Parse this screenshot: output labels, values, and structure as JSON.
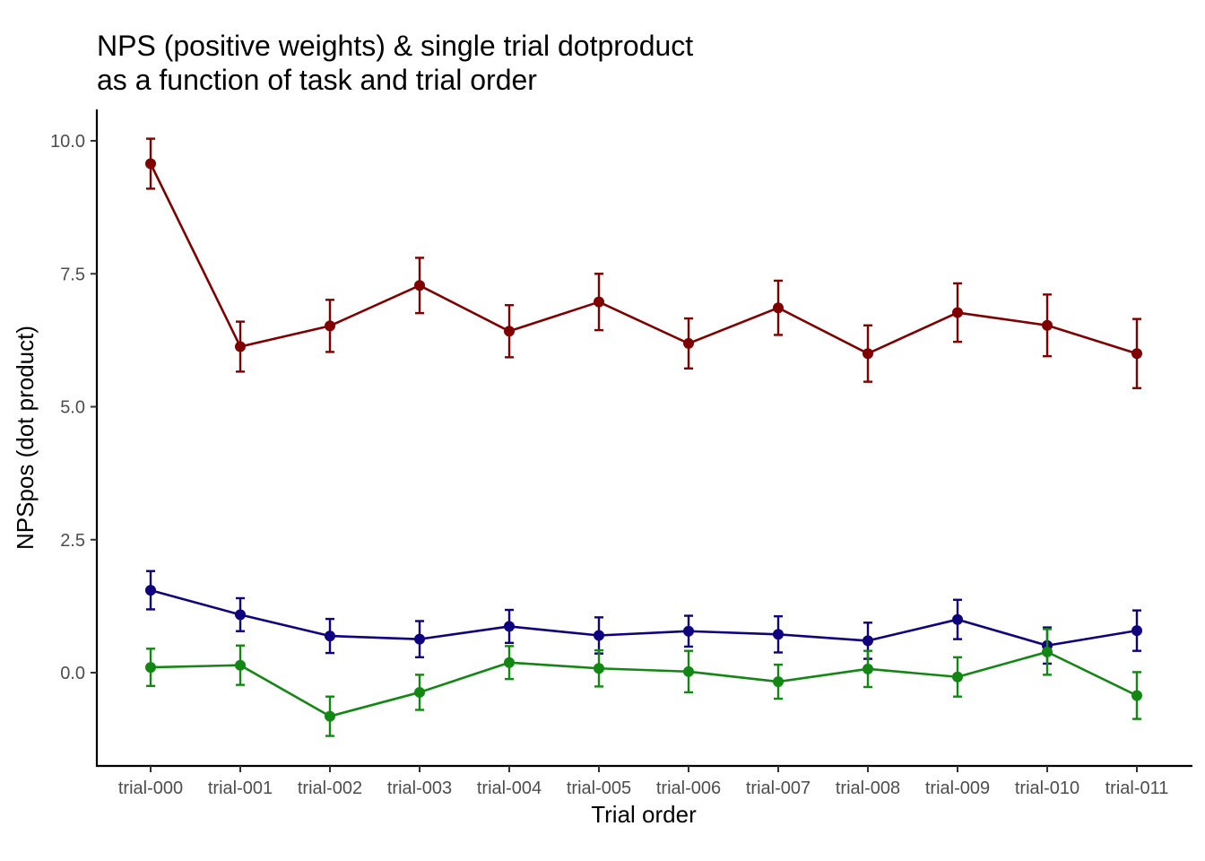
{
  "chart_data": {
    "type": "line",
    "title": "NPS (positive weights) & single trial dotproduct",
    "subtitle": "as a function of task and trial order",
    "xlabel": "Trial order",
    "ylabel": "NPSpos (dot product)",
    "categories": [
      "trial-000",
      "trial-001",
      "trial-002",
      "trial-003",
      "trial-004",
      "trial-005",
      "trial-006",
      "trial-007",
      "trial-008",
      "trial-009",
      "trial-010",
      "trial-011"
    ],
    "ylim": [
      -1.7,
      10.6
    ],
    "yticks": [
      0.0,
      2.5,
      5.0,
      7.5,
      10.0
    ],
    "ytick_labels": [
      "0.0",
      "2.5",
      "5.0",
      "7.5",
      "10.0"
    ],
    "grid": false,
    "legend": "none",
    "series": [
      {
        "color": "#800000",
        "values": [
          9.57,
          6.13,
          6.52,
          7.28,
          6.42,
          6.97,
          6.19,
          6.86,
          6.0,
          6.77,
          6.53,
          6.0
        ],
        "lower": [
          9.1,
          5.66,
          6.03,
          6.76,
          5.93,
          6.44,
          5.72,
          6.35,
          5.47,
          6.22,
          5.95,
          5.35
        ],
        "upper": [
          10.04,
          6.6,
          7.01,
          7.8,
          6.91,
          7.5,
          6.66,
          7.37,
          6.53,
          7.32,
          7.11,
          6.65
        ]
      },
      {
        "color": "#0f0080",
        "values": [
          1.55,
          1.09,
          0.69,
          0.63,
          0.87,
          0.7,
          0.78,
          0.72,
          0.6,
          1.0,
          0.51,
          0.79
        ],
        "lower": [
          1.19,
          0.78,
          0.37,
          0.29,
          0.56,
          0.36,
          0.49,
          0.38,
          0.26,
          0.63,
          0.17,
          0.41
        ],
        "upper": [
          1.91,
          1.4,
          1.01,
          0.97,
          1.18,
          1.04,
          1.07,
          1.06,
          0.94,
          1.37,
          0.85,
          1.17
        ]
      },
      {
        "color": "#138713",
        "values": [
          0.1,
          0.14,
          -0.82,
          -0.37,
          0.19,
          0.08,
          0.02,
          -0.17,
          0.07,
          -0.08,
          0.39,
          -0.43
        ],
        "lower": [
          -0.25,
          -0.23,
          -1.19,
          -0.7,
          -0.12,
          -0.26,
          -0.37,
          -0.49,
          -0.27,
          -0.45,
          -0.04,
          -0.87
        ],
        "upper": [
          0.45,
          0.51,
          -0.45,
          -0.04,
          0.5,
          0.42,
          0.41,
          0.15,
          0.41,
          0.29,
          0.82,
          0.01
        ]
      }
    ]
  }
}
